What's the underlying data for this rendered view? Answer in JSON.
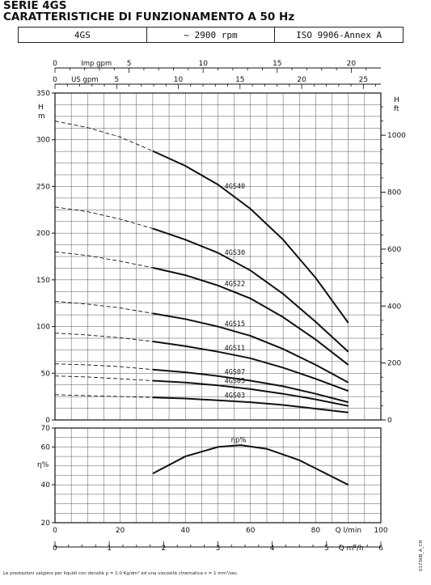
{
  "title_lines": [
    "SERIE 4GS",
    "CARATTERISTICHE DI FUNZIONAMENTO A 50 Hz"
  ],
  "header": {
    "model": "4GS",
    "speed": "~ 2900 rpm",
    "standard": "ISO 9906-Annex A"
  },
  "footnote": "Le prestazioni valgono per liquidi con densità ρ = 1.0 Kg/dm³ ed una viscosità cinematica ν = 1 mm²/sec.",
  "code": "01736B_A_CH",
  "chart_data": [
    {
      "type": "line",
      "x_axis_primary": {
        "label": "Q l/min",
        "range": [
          0,
          100
        ],
        "ticks": [
          0,
          20,
          40,
          60,
          80,
          100
        ]
      },
      "x_axis_secondary": {
        "label": "Q m³/h",
        "ticks": [
          0,
          1,
          2,
          3,
          4,
          5,
          6
        ]
      },
      "x_axis_top_imp": {
        "label": "Imp gpm",
        "ticks": [
          0,
          5,
          10,
          15,
          20
        ]
      },
      "x_axis_top_us": {
        "label": "US gpm",
        "ticks": [
          0,
          5,
          10,
          15,
          20,
          25
        ]
      },
      "y_axis": {
        "label": "H m",
        "range": [
          0,
          350
        ],
        "ticks": [
          0,
          50,
          100,
          150,
          200,
          250,
          300,
          350
        ]
      },
      "y_axis_right": {
        "label": "H ft",
        "ticks": [
          0,
          200,
          400,
          600,
          800,
          1000
        ]
      },
      "grid": true,
      "dashed_until_x": 30,
      "series": [
        {
          "name": "4GS40",
          "x": [
            0,
            10,
            20,
            30,
            40,
            50,
            60,
            70,
            80,
            90
          ],
          "y": [
            320,
            313,
            303,
            288,
            272,
            252,
            226,
            193,
            152,
            104
          ]
        },
        {
          "name": "4GS30",
          "x": [
            0,
            10,
            20,
            30,
            40,
            50,
            60,
            70,
            80,
            90
          ],
          "y": [
            228,
            223,
            215,
            205,
            193,
            179,
            160,
            135,
            105,
            73
          ]
        },
        {
          "name": "4GS22",
          "x": [
            0,
            10,
            20,
            30,
            40,
            50,
            60,
            70,
            80,
            90
          ],
          "y": [
            180,
            176,
            170,
            163,
            155,
            144,
            130,
            110,
            86,
            59
          ]
        },
        {
          "name": "4GS15",
          "x": [
            0,
            10,
            20,
            30,
            40,
            50,
            60,
            70,
            80,
            90
          ],
          "y": [
            127,
            124,
            120,
            114,
            108,
            100,
            90,
            76,
            59,
            40
          ]
        },
        {
          "name": "4GS11",
          "x": [
            0,
            10,
            20,
            30,
            40,
            50,
            60,
            70,
            80,
            90
          ],
          "y": [
            93,
            91,
            88,
            84,
            79,
            73,
            66,
            56,
            44,
            31
          ]
        },
        {
          "name": "4GS07",
          "x": [
            0,
            10,
            20,
            30,
            40,
            50,
            60,
            70,
            80,
            90
          ],
          "y": [
            60,
            59,
            57,
            54,
            51,
            47,
            42,
            36,
            28,
            19
          ]
        },
        {
          "name": "4GS05",
          "x": [
            0,
            10,
            20,
            30,
            40,
            50,
            60,
            70,
            80,
            90
          ],
          "y": [
            47,
            46,
            44,
            42,
            40,
            37,
            33,
            28,
            22,
            15
          ]
        },
        {
          "name": "4GS03",
          "x": [
            0,
            10,
            20,
            30,
            40,
            50,
            60,
            70,
            80,
            90
          ],
          "y": [
            27,
            26,
            25,
            24,
            23,
            21,
            19,
            16,
            12,
            8
          ]
        }
      ]
    },
    {
      "type": "line",
      "y_axis": {
        "label": "η%",
        "range": [
          20,
          70
        ],
        "ticks": [
          20,
          40,
          60,
          70
        ]
      },
      "x_range": [
        0,
        100
      ],
      "grid": true,
      "series": [
        {
          "name": "ηp%",
          "x": [
            30,
            40,
            50,
            57,
            65,
            75,
            90
          ],
          "y": [
            46,
            55,
            60,
            61,
            59,
            53,
            40
          ]
        }
      ]
    }
  ]
}
